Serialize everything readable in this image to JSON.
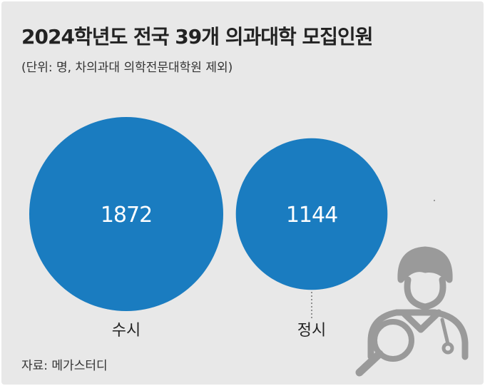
{
  "header": {
    "title": "2024학년도 전국 39개 의과대학 모집인원",
    "subtitle": "(단위: 명, 차의과대 의학전문대학원 제외)"
  },
  "footer": {
    "source": "자료: 메가스터디"
  },
  "colors": {
    "background": "#e8e8e8",
    "bubble": "#1a7cc0",
    "bubble_text": "#ffffff",
    "icon": "#9a9a9a"
  },
  "icons": [
    "doctor-icon",
    "magnifier-icon"
  ],
  "chart_data": {
    "type": "bubble",
    "categories": [
      "수시",
      "정시"
    ],
    "values": [
      1872,
      1144
    ],
    "value_labels": [
      "1872",
      "1144"
    ],
    "title": "2024학년도 전국 39개 의과대학 모집인원",
    "subtitle": "(단위: 명, 차의과대 의학전문대학원 제외)",
    "grid": false,
    "legend": "none"
  }
}
